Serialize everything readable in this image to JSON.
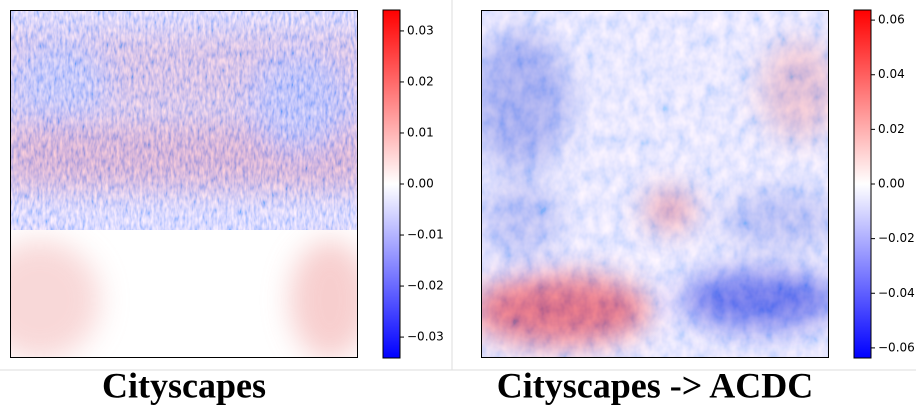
{
  "chart_data": [
    {
      "type": "heatmap",
      "title": "Cityscapes",
      "cmap": [
        "#0000ff",
        "#ffffff",
        "#ff0000"
      ],
      "clim": [
        -0.0341,
        0.0341
      ],
      "cticks": [
        {
          "value": -0.03,
          "label": "−0.03"
        },
        {
          "value": -0.02,
          "label": "−0.02"
        },
        {
          "value": -0.01,
          "label": "−0.01"
        },
        {
          "value": 0,
          "label": "0.00"
        },
        0.01,
        0.02,
        0.03
      ]
    },
    {
      "type": "heatmap",
      "title": "Cityscapes -> ACDC",
      "cmap": [
        "#0000ff",
        "#ffffff",
        "#ff0000"
      ],
      "clim": [
        -0.0637,
        0.0637
      ],
      "cticks": [
        {
          "value": -0.06,
          "label": "−0.06"
        },
        {
          "value": -0.04,
          "label": "−0.04"
        },
        {
          "value": -0.02,
          "label": "−0.02"
        },
        {
          "value": 0,
          "label": "0.00"
        },
        0.02,
        0.04,
        0.06
      ]
    }
  ]
}
